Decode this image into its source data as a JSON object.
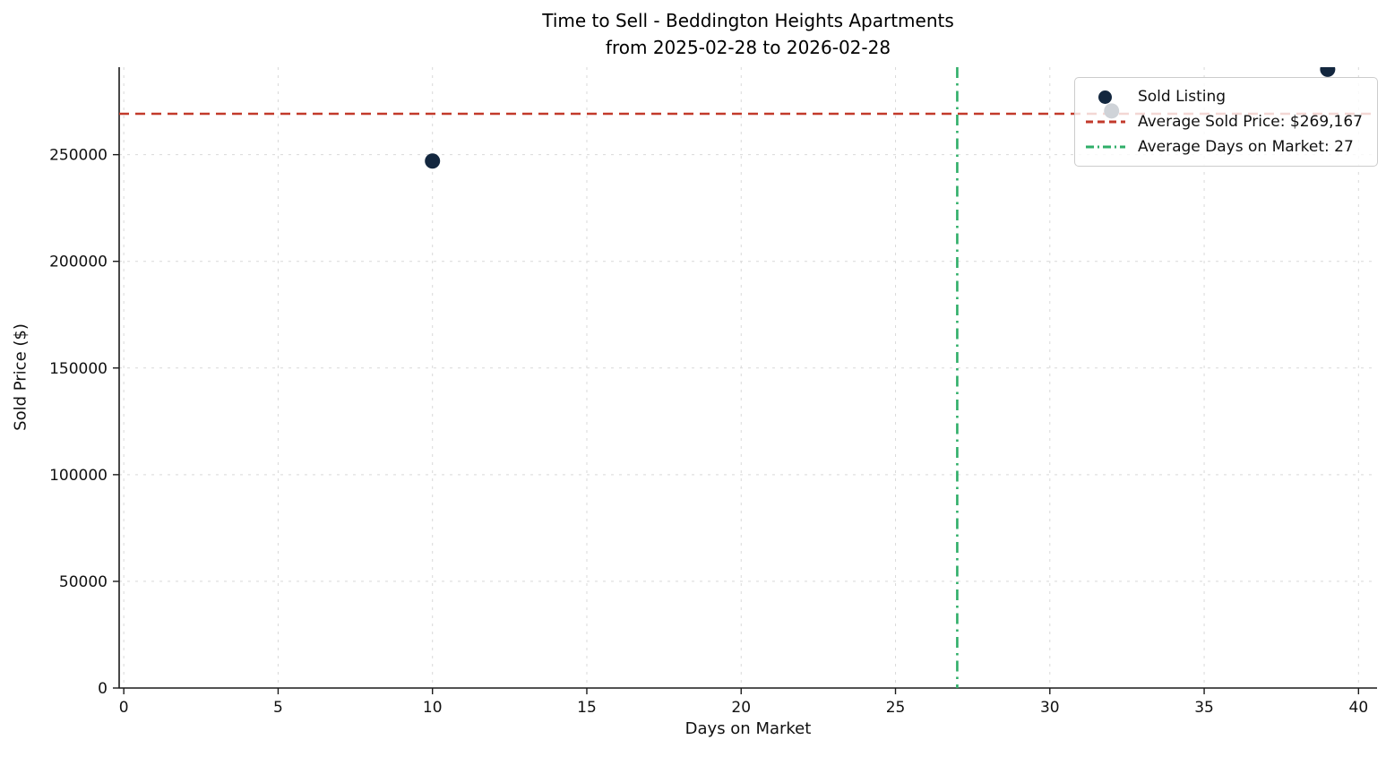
{
  "chart_data": {
    "type": "scatter",
    "title": "Time to Sell - Beddington Heights Apartments",
    "subtitle": "from 2025-02-28 to 2026-02-28",
    "xlabel": "Days on Market",
    "ylabel": "Sold Price ($)",
    "xlim": [
      -0.15,
      40.6
    ],
    "ylim": [
      0,
      291000
    ],
    "x_ticks": [
      0,
      5,
      10,
      15,
      20,
      25,
      30,
      35,
      40
    ],
    "y_ticks": [
      0,
      50000,
      100000,
      150000,
      200000,
      250000
    ],
    "grid": true,
    "points": [
      {
        "x": 10,
        "y": 247000
      },
      {
        "x": 32,
        "y": 270500
      },
      {
        "x": 39,
        "y": 290000
      }
    ],
    "avg_sold_price": {
      "value": 269167,
      "label": "Average Sold Price: $269,167"
    },
    "avg_days_on_market": {
      "value": 27,
      "label": "Average Days on Market: 27"
    },
    "legend": {
      "position": "upper right",
      "entries": [
        {
          "label": "Sold Listing",
          "marker": "dot"
        },
        {
          "label": "Average Sold Price: $269,167",
          "marker": "dashed-line"
        },
        {
          "label": "Average Days on Market: 27",
          "marker": "dashdot-line"
        }
      ]
    },
    "colors": {
      "point": "#13273f",
      "avg_price_line": "#c23a2b",
      "avg_days_line": "#2fae68",
      "grid": "#d9d9d9",
      "text": "#111111"
    }
  }
}
